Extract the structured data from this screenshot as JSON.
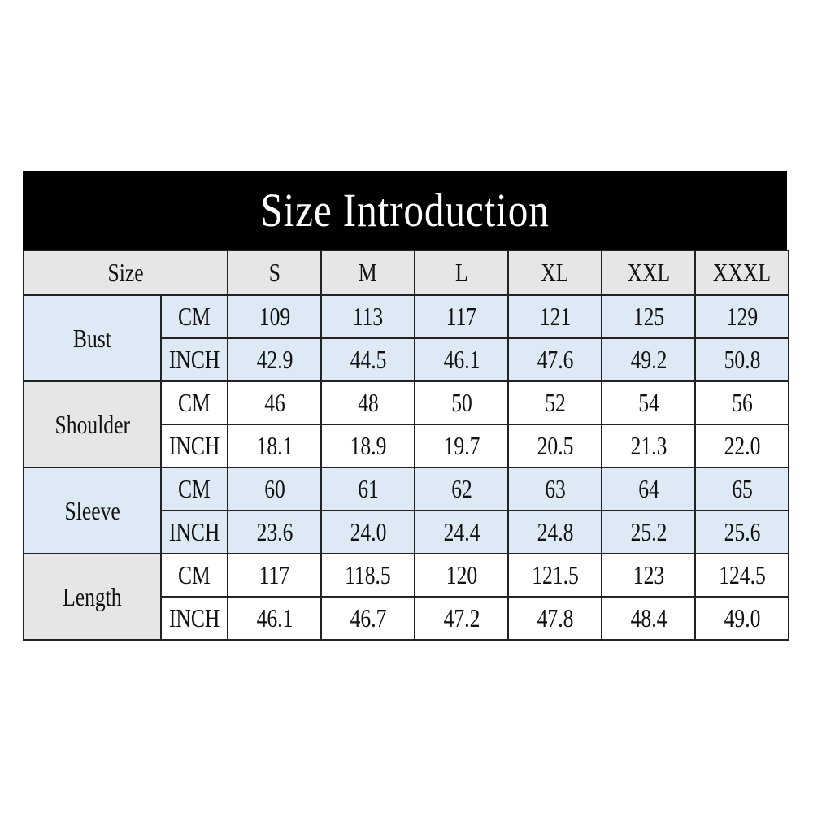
{
  "title": "Size Introduction",
  "header": {
    "size_label": "Size",
    "sizes": [
      "S",
      "M",
      "L",
      "XL",
      "XXL",
      "XXXL"
    ]
  },
  "colors": {
    "title_bg": "#000000",
    "blue_row": "#dde9f4",
    "grey_cell": "#e6e6e6"
  },
  "measurements": [
    {
      "name": "Bust",
      "shade": "blue",
      "rows": [
        {
          "unit": "CM",
          "values": [
            "109",
            "113",
            "117",
            "121",
            "125",
            "129"
          ]
        },
        {
          "unit": "INCH",
          "values": [
            "42.9",
            "44.5",
            "46.1",
            "47.6",
            "49.2",
            "50.8"
          ]
        }
      ]
    },
    {
      "name": "Shoulder",
      "shade": "white",
      "rows": [
        {
          "unit": "CM",
          "values": [
            "46",
            "48",
            "50",
            "52",
            "54",
            "56"
          ]
        },
        {
          "unit": "INCH",
          "values": [
            "18.1",
            "18.9",
            "19.7",
            "20.5",
            "21.3",
            "22.0"
          ]
        }
      ]
    },
    {
      "name": "Sleeve",
      "shade": "blue",
      "rows": [
        {
          "unit": "CM",
          "values": [
            "60",
            "61",
            "62",
            "63",
            "64",
            "65"
          ]
        },
        {
          "unit": "INCH",
          "values": [
            "23.6",
            "24.0",
            "24.4",
            "24.8",
            "25.2",
            "25.6"
          ]
        }
      ]
    },
    {
      "name": "Length",
      "shade": "white",
      "rows": [
        {
          "unit": "CM",
          "values": [
            "117",
            "118.5",
            "120",
            "121.5",
            "123",
            "124.5"
          ]
        },
        {
          "unit": "INCH",
          "values": [
            "46.1",
            "46.7",
            "47.2",
            "47.8",
            "48.4",
            "49.0"
          ]
        }
      ]
    }
  ]
}
